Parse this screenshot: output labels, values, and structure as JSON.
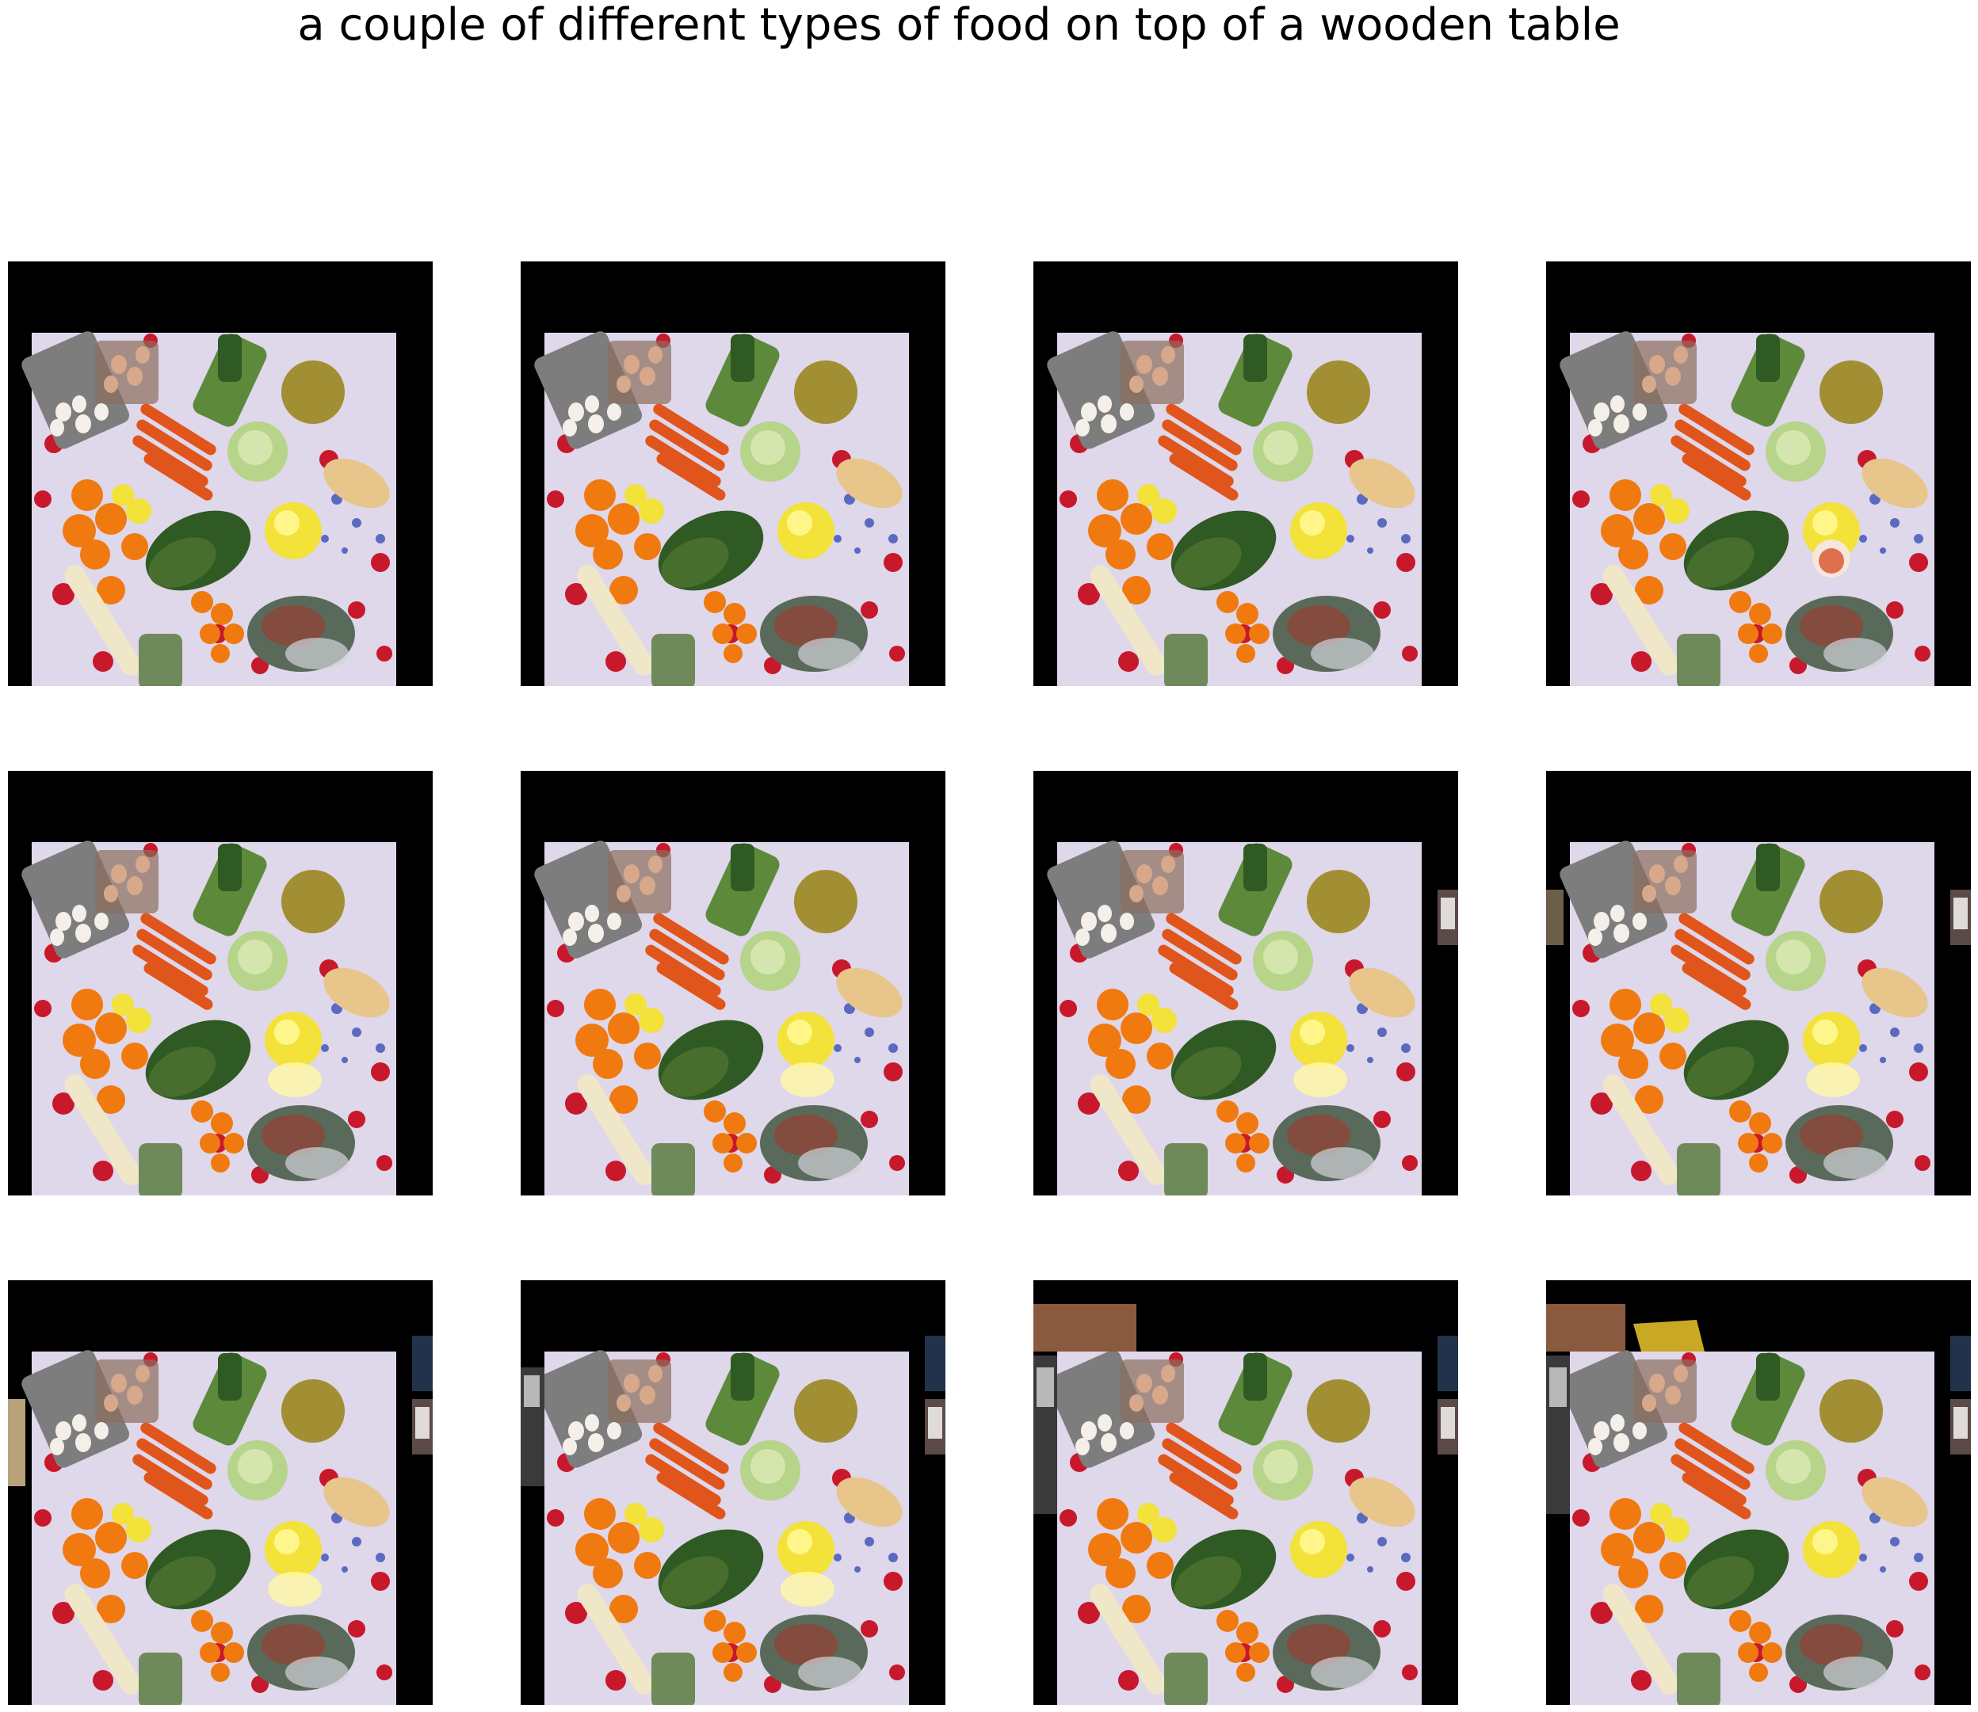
{
  "title": "a couple of different types of food on top of a wooden table",
  "grid": {
    "rows": 3,
    "columns": 4,
    "panel_count": 12
  },
  "image_content": "overhead photo of vegetables, fruit and eggs on a floral tablecloth, repeated with small variations",
  "colors": {
    "background": "#ffffff",
    "frame_fill": "#000000",
    "tablecloth": "#d8cfe6",
    "flower_red": "#c8182b",
    "orange": "#f07a10",
    "carrot": "#e0551c",
    "lemon_yellow": "#f2e23a",
    "leafy_green": "#2f5a24",
    "cabbage": "#b6d48a",
    "melon": "#c09a3a",
    "squash": "#e8c58a",
    "egg_carton": "#8a8a8a"
  }
}
